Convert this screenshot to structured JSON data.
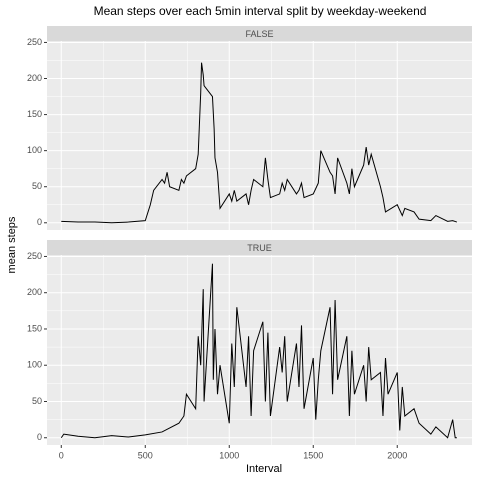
{
  "chart_data": {
    "type": "line",
    "title": "Mean steps over each 5min interval split by weekday-weekend",
    "xlabel": "Interval",
    "ylabel": "mean steps",
    "xlim": [
      -85,
      2445
    ],
    "ylim": [
      -10,
      252
    ],
    "xticks": [
      0,
      500,
      1000,
      1500,
      2000
    ],
    "yticks": [
      0,
      50,
      100,
      150,
      200,
      250
    ],
    "grid": true,
    "color": "#000000",
    "panels": [
      {
        "name": "FALSE",
        "x": [
          0,
          100,
          200,
          300,
          400,
          500,
          530,
          550,
          600,
          615,
          630,
          645,
          700,
          715,
          730,
          745,
          800,
          815,
          830,
          835,
          845,
          850,
          900,
          910,
          915,
          930,
          945,
          1000,
          1015,
          1030,
          1045,
          1100,
          1115,
          1130,
          1145,
          1200,
          1215,
          1230,
          1245,
          1300,
          1315,
          1330,
          1345,
          1400,
          1415,
          1430,
          1445,
          1500,
          1530,
          1545,
          1600,
          1615,
          1630,
          1645,
          1700,
          1715,
          1730,
          1745,
          1800,
          1815,
          1830,
          1845,
          1900,
          1915,
          1930,
          2000,
          2030,
          2045,
          2100,
          2130,
          2200,
          2230,
          2300,
          2330,
          2355
        ],
        "values": [
          2,
          1,
          1,
          0,
          1,
          3,
          25,
          45,
          60,
          55,
          70,
          50,
          45,
          60,
          55,
          65,
          75,
          95,
          180,
          222,
          205,
          190,
          175,
          130,
          90,
          70,
          20,
          40,
          30,
          45,
          30,
          40,
          25,
          45,
          60,
          50,
          90,
          60,
          35,
          40,
          55,
          45,
          60,
          40,
          45,
          55,
          35,
          40,
          55,
          100,
          70,
          65,
          40,
          90,
          55,
          40,
          75,
          50,
          80,
          105,
          80,
          95,
          50,
          35,
          15,
          25,
          10,
          20,
          15,
          5,
          3,
          10,
          2,
          3,
          1
        ]
      },
      {
        "name": "TRUE",
        "x": [
          0,
          15,
          100,
          200,
          300,
          400,
          500,
          600,
          700,
          730,
          745,
          800,
          815,
          830,
          845,
          850,
          900,
          905,
          915,
          930,
          945,
          1000,
          1015,
          1030,
          1045,
          1100,
          1115,
          1130,
          1145,
          1200,
          1215,
          1230,
          1245,
          1300,
          1315,
          1330,
          1345,
          1400,
          1415,
          1430,
          1445,
          1500,
          1515,
          1530,
          1545,
          1600,
          1615,
          1630,
          1645,
          1700,
          1715,
          1730,
          1745,
          1800,
          1815,
          1830,
          1845,
          1900,
          1915,
          1930,
          1945,
          2000,
          2015,
          2030,
          2045,
          2100,
          2130,
          2200,
          2230,
          2300,
          2330,
          2345,
          2355
        ],
        "values": [
          0,
          5,
          2,
          0,
          3,
          1,
          4,
          8,
          20,
          30,
          60,
          40,
          140,
          100,
          205,
          50,
          240,
          80,
          150,
          60,
          100,
          20,
          130,
          70,
          180,
          70,
          140,
          30,
          120,
          160,
          50,
          145,
          30,
          125,
          90,
          140,
          50,
          130,
          70,
          155,
          40,
          110,
          25,
          80,
          120,
          180,
          60,
          190,
          80,
          140,
          30,
          120,
          60,
          100,
          50,
          125,
          80,
          90,
          30,
          110,
          60,
          90,
          10,
          70,
          30,
          40,
          20,
          5,
          15,
          0,
          25,
          0,
          0
        ]
      }
    ]
  }
}
